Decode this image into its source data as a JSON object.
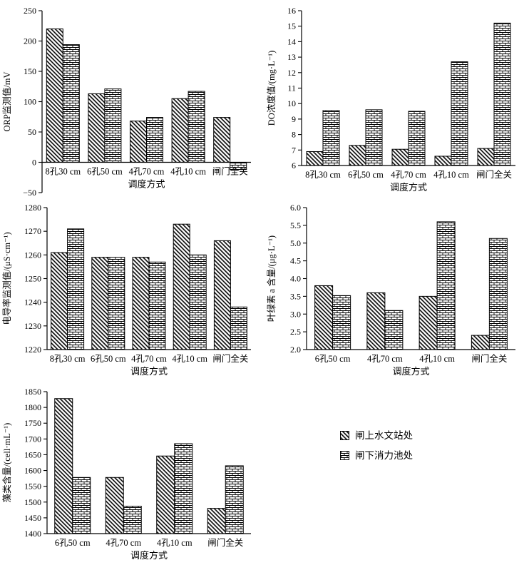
{
  "figure": {
    "background": "#ffffff",
    "series_names": [
      "闸上水文站处",
      "闸下消力池处"
    ],
    "colors": {
      "bar_outline": "#000000",
      "bar_fill": "#ffffff",
      "axis": "#000000",
      "text": "#000000"
    }
  },
  "legend": {
    "items": [
      {
        "label": "闸上水文站处",
        "pattern": "diagonal-hatch"
      },
      {
        "label": "闸下消力池处",
        "pattern": "brick"
      }
    ]
  },
  "chart_data": [
    {
      "type": "bar",
      "position": "top-left",
      "ylabel": "ORP监测值/mV",
      "xlabel": "调度方式",
      "categories": [
        "8孔30 cm",
        "6孔50 cm",
        "4孔70 cm",
        "4孔10 cm",
        "闸门全关"
      ],
      "ylim": [
        -50,
        250
      ],
      "ytick_step": 50,
      "grid": false,
      "legend_position": "none",
      "series": [
        {
          "name": "闸上水文站处",
          "pattern": "diagonal-hatch",
          "values": [
            220,
            113,
            68,
            105,
            74
          ]
        },
        {
          "name": "闸下消力池处",
          "pattern": "brick",
          "values": [
            194,
            121,
            74,
            117,
            -12
          ]
        }
      ]
    },
    {
      "type": "bar",
      "position": "top-right",
      "ylabel": "DO浓度值/(mg·L⁻¹)",
      "xlabel": "调度方式",
      "categories": [
        "8孔30 cm",
        "6孔50 cm",
        "4孔70 cm",
        "4孔10 cm",
        "闸门全关"
      ],
      "ylim": [
        6,
        16
      ],
      "ytick_step": 1,
      "grid": false,
      "legend_position": "none",
      "series": [
        {
          "name": "闸上水文站处",
          "pattern": "diagonal-hatch",
          "values": [
            6.9,
            7.3,
            7.05,
            6.6,
            7.1
          ]
        },
        {
          "name": "闸下消力池处",
          "pattern": "brick",
          "values": [
            9.55,
            9.6,
            9.5,
            12.7,
            15.2
          ]
        }
      ]
    },
    {
      "type": "bar",
      "position": "middle-left",
      "ylabel": "电导率监测值/(μS·cm⁻¹)",
      "xlabel": "调度方式",
      "categories": [
        "8孔30 cm",
        "6孔50 cm",
        "4孔70 cm",
        "4孔10 cm",
        "闸门全关"
      ],
      "ylim": [
        1220,
        1280
      ],
      "ytick_step": 10,
      "grid": false,
      "legend_position": "none",
      "series": [
        {
          "name": "闸上水文站处",
          "pattern": "diagonal-hatch",
          "values": [
            1261,
            1259,
            1259,
            1273,
            1266
          ]
        },
        {
          "name": "闸下消力池处",
          "pattern": "brick",
          "values": [
            1271,
            1259,
            1257,
            1260,
            1238
          ]
        }
      ]
    },
    {
      "type": "bar",
      "position": "middle-right",
      "ylabel": "叶绿素 a 含量/(μg·L⁻¹)",
      "xlabel": "调度方式",
      "categories": [
        "6孔50 cm",
        "4孔70 cm",
        "4孔10 cm",
        "闸门全关"
      ],
      "ylim": [
        2.0,
        6.0
      ],
      "ytick_step": 0.5,
      "grid": false,
      "legend_position": "none",
      "series": [
        {
          "name": "闸上水文站处",
          "pattern": "diagonal-hatch",
          "values": [
            3.8,
            3.6,
            3.5,
            2.4
          ]
        },
        {
          "name": "闸下消力池处",
          "pattern": "brick",
          "values": [
            3.52,
            3.1,
            5.6,
            5.13
          ]
        }
      ]
    },
    {
      "type": "bar",
      "position": "bottom-left",
      "ylabel": "藻类含量/(cell·mL⁻¹)",
      "xlabel": "调度方式",
      "categories": [
        "6孔50 cm",
        "4孔70 cm",
        "4孔10 cm",
        "闸门全关"
      ],
      "ylim": [
        1400,
        1850
      ],
      "ytick_step": 50,
      "grid": false,
      "legend_position": "none",
      "series": [
        {
          "name": "闸上水文站处",
          "pattern": "diagonal-hatch",
          "values": [
            1828,
            1578,
            1646,
            1480
          ]
        },
        {
          "name": "闸下消力池处",
          "pattern": "brick",
          "values": [
            1578,
            1487,
            1685,
            1615
          ]
        }
      ]
    }
  ]
}
